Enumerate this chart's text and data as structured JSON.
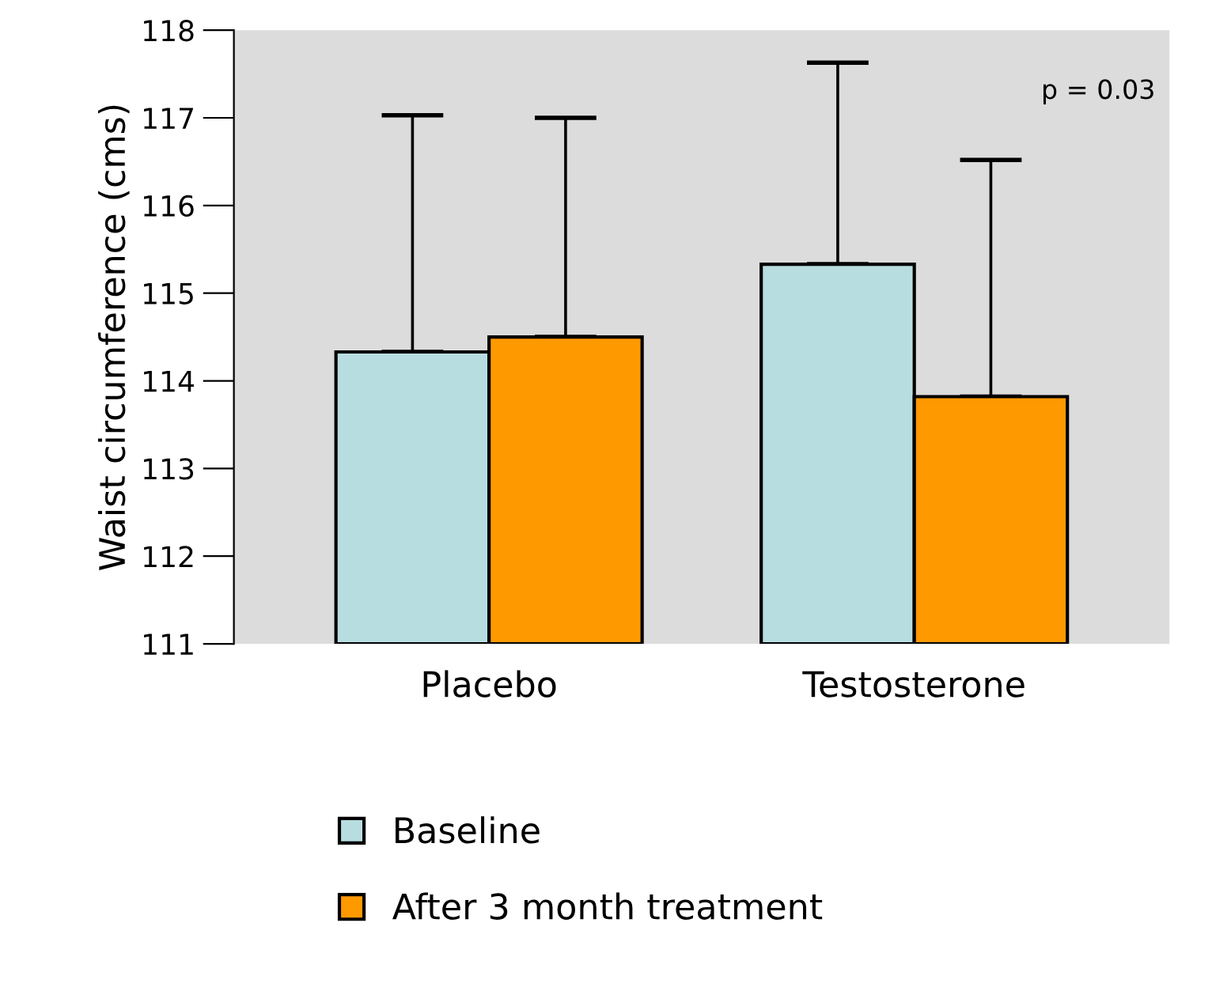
{
  "chart_data": {
    "type": "bar",
    "ylabel": "Waist circumference (cms)",
    "categories": [
      "Placebo",
      "Testosterone"
    ],
    "series": [
      {
        "name": "Baseline",
        "color": "#b8dde1",
        "values": [
          114.33,
          115.33
        ],
        "errors": [
          [
            114.33,
            117.03
          ],
          [
            115.33,
            117.63
          ]
        ]
      },
      {
        "name": "After 3 month treatment",
        "color": "#ff9900",
        "values": [
          114.5,
          113.82
        ],
        "errors": [
          [
            114.5,
            117.0
          ],
          [
            113.82,
            116.52
          ]
        ]
      }
    ],
    "ylim": [
      111,
      118
    ],
    "yticks": [
      111,
      112,
      113,
      114,
      115,
      116,
      117,
      118
    ],
    "annotations": [
      "p = 0.03"
    ],
    "legend": "bottom",
    "grid": false
  }
}
